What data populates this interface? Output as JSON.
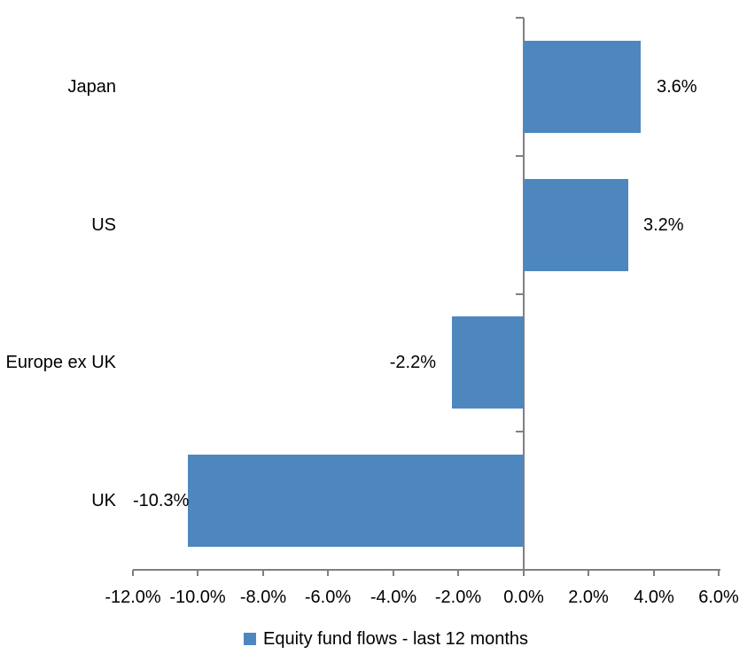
{
  "chart_data": {
    "type": "bar",
    "orientation": "horizontal",
    "title": "",
    "xlabel": "",
    "ylabel": "",
    "categories": [
      "Japan",
      "US",
      "Europe ex UK",
      "UK"
    ],
    "series": [
      {
        "name": "Equity fund flows - last 12 months",
        "values": [
          3.6,
          3.2,
          -2.2,
          -10.3
        ],
        "data_labels": [
          "3.6%",
          "3.2%",
          "-2.2%",
          "-10.3%"
        ]
      }
    ],
    "xlim": [
      -12,
      6
    ],
    "x_ticks": [
      -12,
      -10,
      -8,
      -6,
      -4,
      -2,
      0,
      2,
      4,
      6
    ],
    "x_tick_labels": [
      "-12.0%",
      "-10.0%",
      "-8.0%",
      "-6.0%",
      "-4.0%",
      "-2.0%",
      "0.0%",
      "2.0%",
      "4.0%",
      "6.0%"
    ],
    "grid": false,
    "legend": {
      "position": "bottom",
      "entries": [
        "Equity fund flows - last 12 months"
      ]
    },
    "colors": {
      "bar": "#4e87be",
      "axis": "#808080",
      "text": "#000000",
      "background": "#ffffff"
    }
  }
}
